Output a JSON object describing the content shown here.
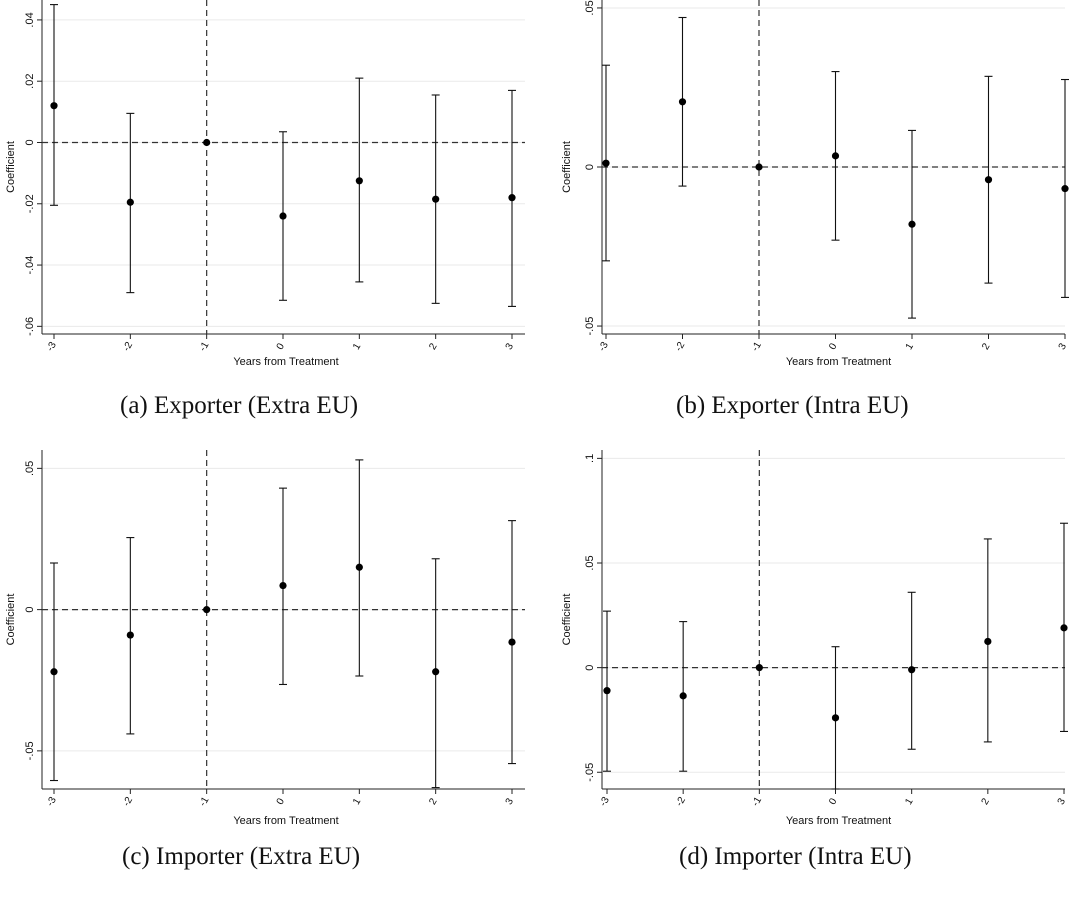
{
  "chart_data": [
    {
      "type": "scatter",
      "subtype": "coefficient-plot-with-confidence-intervals",
      "caption": "(a) Exporter (Extra EU)",
      "xlabel": "Years from Treatment",
      "ylabel": "Coefficient",
      "x": [
        -3,
        -2,
        -1,
        0,
        1,
        2,
        3
      ],
      "x_tick_labels": [
        "-3",
        "-2",
        "-1",
        "0",
        "1",
        "2",
        "3"
      ],
      "y": [
        0.012,
        -0.0195,
        0,
        -0.024,
        -0.0125,
        -0.0185,
        -0.018
      ],
      "ci_low": [
        -0.0205,
        -0.049,
        0,
        -0.0515,
        -0.0455,
        -0.0525,
        -0.0535
      ],
      "ci_high": [
        0.045,
        0.0095,
        0,
        0.0035,
        0.021,
        0.0155,
        0.017
      ],
      "y_ticks": [
        -0.06,
        -0.04,
        -0.02,
        0,
        0.02,
        0.04
      ],
      "y_tick_labels": [
        "-.06",
        "-.04",
        "-.02",
        "0",
        ".02",
        ".04"
      ],
      "ylim": [
        -0.0625,
        0.0465
      ],
      "grid": true,
      "reference_lines": {
        "y": 0,
        "x": -1
      }
    },
    {
      "type": "scatter",
      "subtype": "coefficient-plot-with-confidence-intervals",
      "caption": "(b) Exporter (Intra EU)",
      "xlabel": "Years from Treatment",
      "ylabel": "Coefficient",
      "x": [
        -3,
        -2,
        -1,
        0,
        1,
        2,
        3
      ],
      "x_tick_labels": [
        "-3",
        "-2",
        "-1",
        "0",
        "1",
        "2",
        "3"
      ],
      "y": [
        0.0012,
        0.0205,
        0,
        0.0035,
        -0.018,
        -0.004,
        -0.0068
      ],
      "ci_low": [
        -0.0295,
        -0.006,
        0,
        -0.023,
        -0.0475,
        -0.0365,
        -0.041
      ],
      "ci_high": [
        0.032,
        0.047,
        0,
        0.03,
        0.0115,
        0.0285,
        0.0275
      ],
      "y_ticks": [
        -0.05,
        0,
        0.05
      ],
      "y_tick_labels": [
        "-.05",
        "0",
        ".05"
      ],
      "ylim": [
        -0.0525,
        0.0525
      ],
      "grid": true,
      "reference_lines": {
        "y": 0,
        "x": -1
      }
    },
    {
      "type": "scatter",
      "subtype": "coefficient-plot-with-confidence-intervals",
      "caption": "(c) Importer (Extra EU)",
      "xlabel": "Years from Treatment",
      "ylabel": "Coefficient",
      "x": [
        -3,
        -2,
        -1,
        0,
        1,
        2,
        3
      ],
      "x_tick_labels": [
        "-3",
        "-2",
        "-1",
        "0",
        "1",
        "2",
        "3"
      ],
      "y": [
        -0.022,
        -0.009,
        0,
        0.0085,
        0.015,
        -0.022,
        -0.0115
      ],
      "ci_low": [
        -0.0605,
        -0.044,
        0,
        -0.0265,
        -0.0235,
        -0.063,
        -0.0545
      ],
      "ci_high": [
        0.0165,
        0.0255,
        0,
        0.043,
        0.053,
        0.018,
        0.0315
      ],
      "y_ticks": [
        -0.05,
        0,
        0.05
      ],
      "y_tick_labels": [
        "-.05",
        "0",
        ".05"
      ],
      "ylim": [
        -0.0635,
        0.0565
      ],
      "grid": true,
      "reference_lines": {
        "y": 0,
        "x": -1
      }
    },
    {
      "type": "scatter",
      "subtype": "coefficient-plot-with-confidence-intervals",
      "caption": "(d) Importer (Intra EU)",
      "xlabel": "Years from Treatment",
      "ylabel": "Coefficient",
      "x": [
        -3,
        -2,
        -1,
        0,
        1,
        2,
        3
      ],
      "x_tick_labels": [
        "-3",
        "-2",
        "-1",
        "0",
        "1",
        "2",
        "3"
      ],
      "y": [
        -0.011,
        -0.0135,
        0,
        -0.024,
        -0.001,
        0.0125,
        0.019
      ],
      "ci_low": [
        -0.0495,
        -0.0495,
        0,
        -0.058,
        -0.039,
        -0.0355,
        -0.0305
      ],
      "ci_high": [
        0.027,
        0.022,
        0,
        0.01,
        0.036,
        0.0615,
        0.069
      ],
      "y_ticks": [
        -0.05,
        0,
        0.05,
        0.1
      ],
      "y_tick_labels": [
        "-.05",
        "0",
        ".05",
        ".1"
      ],
      "ylim": [
        -0.058,
        0.104
      ],
      "grid": true,
      "reference_lines": {
        "y": 0,
        "x": -1
      }
    }
  ]
}
